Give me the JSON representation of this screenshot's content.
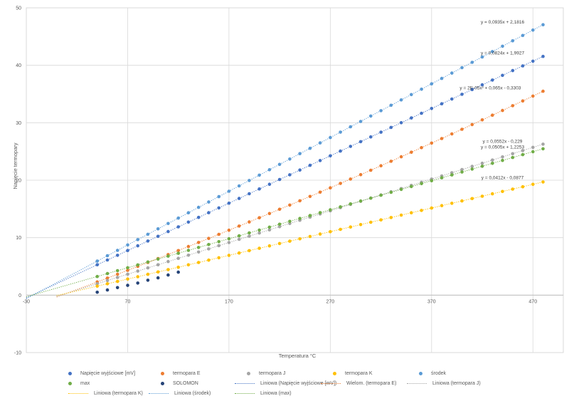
{
  "chart_data": {
    "type": "scatter",
    "title": "",
    "xlabel": "Temperatura °C",
    "ylabel": "Napięcie termopary",
    "xlim": [
      -30,
      500
    ],
    "ylim": [
      -10,
      50
    ],
    "xticks": [
      -30,
      70,
      170,
      270,
      370,
      470
    ],
    "yticks": [
      -10,
      0,
      10,
      20,
      30,
      40,
      50
    ],
    "grid": true,
    "legend_position": "bottom",
    "series": [
      {
        "name": "Napięcie wyjściowe [mV]",
        "color": "#4472C4",
        "x_start": 40,
        "x_end": 480,
        "x_step": 10,
        "formula": {
          "a": 0,
          "b": 0.0824,
          "c": 1.9927
        }
      },
      {
        "name": "termopara E",
        "color": "#ED7D31",
        "x_start": 40,
        "x_end": 480,
        "x_step": 10,
        "formula": {
          "a": 2e-05,
          "b": 0.065,
          "c": -0.3303
        }
      },
      {
        "name": "termopara J",
        "color": "#A5A5A5",
        "x_start": 40,
        "x_end": 480,
        "x_step": 10,
        "formula": {
          "a": 0,
          "b": 0.0552,
          "c": -0.229
        }
      },
      {
        "name": "termopara K",
        "color": "#FFC000",
        "x_start": 40,
        "x_end": 480,
        "x_step": 10,
        "formula": {
          "a": 0,
          "b": 0.0412,
          "c": -0.0877
        }
      },
      {
        "name": "środek",
        "color": "#5B9BD5",
        "x_start": 40,
        "x_end": 480,
        "x_step": 10,
        "formula": {
          "a": 0,
          "b": 0.0935,
          "c": 2.1816
        }
      },
      {
        "name": "max",
        "color": "#70AD47",
        "x_start": 40,
        "x_end": 480,
        "x_step": 10,
        "formula": {
          "a": 0,
          "b": 0.0505,
          "c": 1.2253
        }
      },
      {
        "name": "SOLOMON",
        "color": "#264478",
        "x": [
          40,
          50,
          60,
          70,
          80,
          90,
          100,
          110,
          120
        ],
        "y": [
          0.5,
          0.9,
          1.3,
          1.7,
          2.1,
          2.6,
          3.0,
          3.5,
          4.0
        ]
      }
    ],
    "trendlines": [
      {
        "name": "Liniowa (Napięcie wyjściowe [mV])",
        "color": "#4472C4",
        "formula": {
          "a": 0,
          "b": 0.0824,
          "c": 1.9927
        },
        "x_from": -30,
        "x_to": 480
      },
      {
        "name": "Wielom. (termopara E)",
        "color": "#ED7D31",
        "formula": {
          "a": 2e-05,
          "b": 0.065,
          "c": -0.3303
        },
        "x_from": 0,
        "x_to": 480
      },
      {
        "name": "Liniowa (termopara J)",
        "color": "#A5A5A5",
        "formula": {
          "a": 0,
          "b": 0.0552,
          "c": -0.229
        },
        "x_from": 0,
        "x_to": 480
      },
      {
        "name": "Liniowa (termopara K)",
        "color": "#FFC000",
        "formula": {
          "a": 0,
          "b": 0.0412,
          "c": -0.0877
        },
        "x_from": 0,
        "x_to": 480
      },
      {
        "name": "Liniowa (środek)",
        "color": "#5B9BD5",
        "formula": {
          "a": 0,
          "b": 0.0935,
          "c": 2.1816
        },
        "x_from": -30,
        "x_to": 480
      },
      {
        "name": "Liniowa (max)",
        "color": "#70AD47",
        "formula": {
          "a": 0,
          "b": 0.0505,
          "c": 1.2253
        },
        "x_from": -30,
        "x_to": 480
      }
    ],
    "annotations": [
      {
        "text": "y = 0,0935x + 2,1816",
        "x": 440,
        "y": 47.3
      },
      {
        "text": "y = 0,0824x + 1,9927",
        "x": 440,
        "y": 41.9
      },
      {
        "text": "y = 2E-05x² + 0,065x - 0,3303",
        "x": 428,
        "y": 35.8
      },
      {
        "text": "y = 0,0552x - 0,229",
        "x": 440,
        "y": 26.5
      },
      {
        "text": "y = 0,0505x + 1,2253",
        "x": 440,
        "y": 25.5
      },
      {
        "text": "y = 0,0412x - 0,0877",
        "x": 440,
        "y": 20.2
      }
    ]
  }
}
